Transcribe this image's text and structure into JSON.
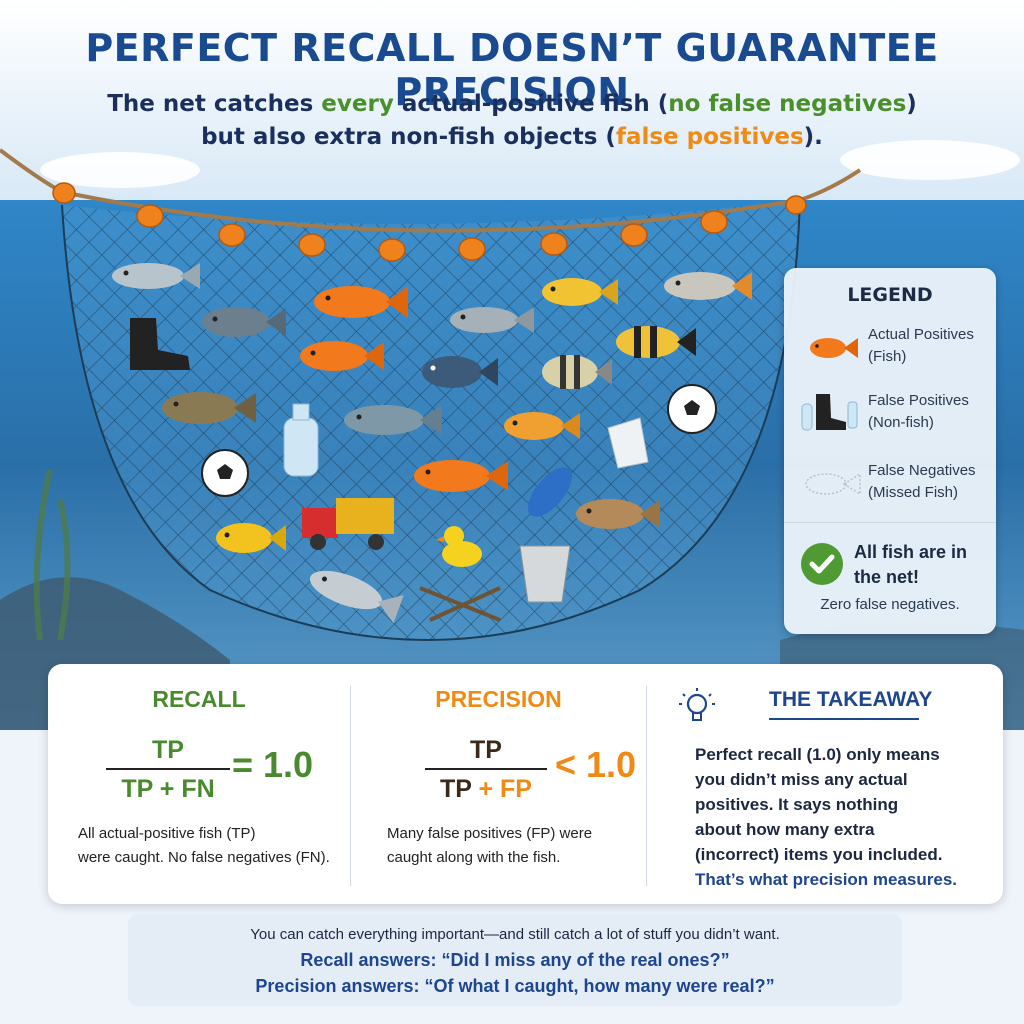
{
  "header": {
    "title": "PERFECT RECALL DOESN’T GUARANTEE PRECISION",
    "subtitle_line1_a": "The net catches ",
    "subtitle_line1_every": "every",
    "subtitle_line1_b": " actual-positive fish (",
    "subtitle_line1_fn": "no false negatives",
    "subtitle_line1_c": ")",
    "subtitle_line2_a": "but also extra non-fish objects (",
    "subtitle_line2_fp": "false positives",
    "subtitle_line2_b": ")."
  },
  "colors": {
    "title": "#1a4a8f",
    "recall_green": "#4a8a2e",
    "precision_orange": "#ef8a15",
    "water": "#3a7fb8",
    "float": "#f0821e"
  },
  "legend": {
    "title": "LEGEND",
    "items": [
      {
        "label_1": "Actual Positives",
        "label_2": "(Fish)",
        "icon": "goldfish-icon"
      },
      {
        "label_1": "False Positives",
        "label_2": "(Non-fish)",
        "icon": "boot-and-bottle-icon"
      },
      {
        "label_1": "False Negatives",
        "label_2": "(Missed Fish)",
        "icon": "fish-outline-icon"
      }
    ],
    "check_text_1": "All fish are in",
    "check_text_2": "the net!",
    "check_note": "Zero false negatives."
  },
  "recall": {
    "title": "RECALL",
    "numerator": "TP",
    "denominator": "TP + FN",
    "result": "= 1.0",
    "desc_1": "All actual-positive fish (TP)",
    "desc_2": "were caught. No false negatives (FN)."
  },
  "precision": {
    "title": "PRECISION",
    "numerator": "TP",
    "denominator_1": "TP",
    "denominator_2": " + FP",
    "result": "< 1.0",
    "desc_1": "Many false positives (FP) were",
    "desc_2": "caught along with the fish."
  },
  "takeaway": {
    "title": "THE TAKEAWAY",
    "line_1": "Perfect recall (1.0) only means",
    "line_2": "you didn’t miss any actual",
    "line_3": "positives. It says nothing",
    "line_4": "about how many extra",
    "line_5": "(incorrect) items you included.",
    "line_6": "That’s what precision measures."
  },
  "footer": {
    "line_1": "You can catch everything important—and still catch a lot of stuff you didn’t want.",
    "line_2": "Recall answers: “Did I miss any of the real ones?”",
    "line_3": "Precision answers: “Of what I caught, how many were real?”"
  }
}
